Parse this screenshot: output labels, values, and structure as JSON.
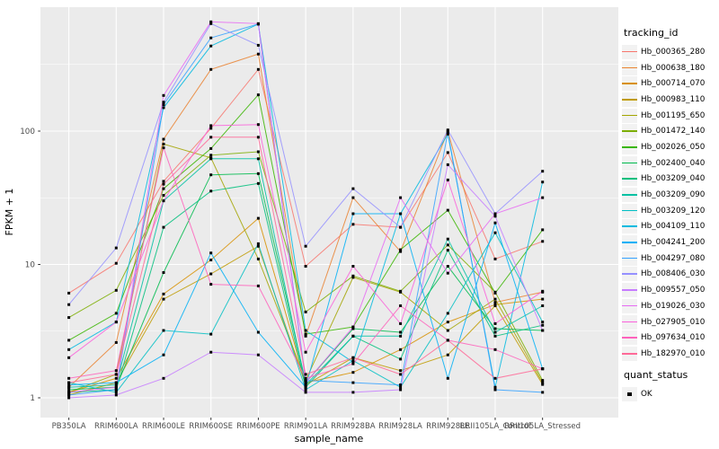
{
  "chart_data": {
    "type": "line",
    "title": "",
    "xlabel": "sample_name",
    "ylabel": "FPKM + 1",
    "y_scale": "log10",
    "y_ticks": [
      1,
      10,
      100
    ],
    "y_minor_gridlines": [
      3.162,
      31.62,
      316.2
    ],
    "ylim": [
      0.72,
      850
    ],
    "grid": "on",
    "panel_bg": "#EBEBEB",
    "grid_color": "#FFFFFF",
    "axis_text_color": "#4D4D4D",
    "point_color": "#000000",
    "point_shape": "square",
    "legend_position": "right",
    "categories": [
      "PB350LA",
      "RRIM600LA",
      "RRIM600LE",
      "RRIM600SE",
      "RRIM600PE",
      "RRIM901LA",
      "RRIM928BA",
      "RRIM928LA",
      "RRIM928LE",
      "RRII105LA_Control",
      "RRII105LA_Stressed"
    ],
    "series": [
      {
        "name": "Hb_000365_280",
        "color": "#F8766D",
        "values": [
          6.1,
          10.2,
          42,
          105,
          290,
          9.7,
          20,
          19,
          69,
          11,
          14.9
        ]
      },
      {
        "name": "Hb_000638_180",
        "color": "#EA8331",
        "values": [
          1.2,
          2.6,
          87,
          290,
          378,
          2.9,
          31.7,
          12.5,
          100,
          5.2,
          6.2
        ]
      },
      {
        "name": "Hb_000714_070",
        "color": "#D89000",
        "values": [
          1.1,
          1.4,
          6.0,
          10.8,
          22.2,
          1.3,
          1.55,
          2.3,
          3.7,
          5.0,
          5.5
        ]
      },
      {
        "name": "Hb_000983_110",
        "color": "#C09B00",
        "values": [
          1.05,
          1.3,
          5.5,
          8.5,
          13.7,
          1.25,
          2.0,
          1.6,
          2.1,
          4.9,
          1.26
        ]
      },
      {
        "name": "Hb_001195_650",
        "color": "#A3A500",
        "values": [
          1.1,
          1.5,
          80,
          63,
          11,
          1.35,
          8.0,
          6.2,
          3.2,
          5.5,
          1.3
        ]
      },
      {
        "name": "Hb_001472_140",
        "color": "#7CAE00",
        "values": [
          4.0,
          6.4,
          33,
          66,
          70,
          4.4,
          8.2,
          6.3,
          14,
          6.2,
          1.35
        ]
      },
      {
        "name": "Hb_002026_050",
        "color": "#39B600",
        "values": [
          2.7,
          4.3,
          37,
          74,
          187,
          3.0,
          3.4,
          12.9,
          25.5,
          6.1,
          18.2
        ]
      },
      {
        "name": "Hb_002400_040",
        "color": "#00BB4E",
        "values": [
          1.15,
          1.2,
          8.7,
          47,
          48,
          1.3,
          3.3,
          3.1,
          9.7,
          3.3,
          3.2
        ]
      },
      {
        "name": "Hb_003209_040",
        "color": "#00BF7D",
        "values": [
          1.1,
          1.15,
          19,
          35.5,
          40.5,
          1.2,
          2.9,
          1.95,
          12.8,
          2.9,
          3.5
        ]
      },
      {
        "name": "Hb_003209_090",
        "color": "#00C1A3",
        "values": [
          1.2,
          1.25,
          30,
          62,
          62,
          1.25,
          2.9,
          2.9,
          15.5,
          3.1,
          4.9
        ]
      },
      {
        "name": "Hb_003209_120",
        "color": "#00BFC4",
        "values": [
          1.3,
          1.1,
          3.2,
          3.0,
          14.3,
          1.15,
          1.9,
          1.2,
          4.3,
          17.3,
          3.7
        ]
      },
      {
        "name": "Hb_004109_110",
        "color": "#00BAE0",
        "values": [
          2.3,
          3.7,
          150,
          435,
          635,
          3.2,
          1.85,
          24,
          95,
          1.2,
          41.5
        ]
      },
      {
        "name": "Hb_004241_200",
        "color": "#00B0F6",
        "values": [
          1.25,
          1.3,
          2.1,
          12.2,
          3.1,
          1.2,
          24,
          24,
          1.4,
          20.5,
          1.65
        ]
      },
      {
        "name": "Hb_004297_080",
        "color": "#35A2FF",
        "values": [
          1.05,
          1.15,
          158,
          500,
          635,
          1.35,
          1.3,
          1.25,
          98,
          1.15,
          1.1
        ]
      },
      {
        "name": "Hb_008406_030",
        "color": "#9590FF",
        "values": [
          5.0,
          13.3,
          165,
          640,
          440,
          13.7,
          37,
          19,
          102,
          24,
          50
        ]
      },
      {
        "name": "Hb_009557_050",
        "color": "#C77CFF",
        "values": [
          1.0,
          1.05,
          1.4,
          2.2,
          2.1,
          1.1,
          1.1,
          1.15,
          56,
          23,
          3.2
        ]
      },
      {
        "name": "Hb_019026_030",
        "color": "#E76BF3",
        "values": [
          1.1,
          1.2,
          185,
          660,
          640,
          1.3,
          3.4,
          31.7,
          8.6,
          24,
          31.7
        ]
      },
      {
        "name": "Hb_027905_010",
        "color": "#FA62DB",
        "values": [
          2.0,
          3.7,
          30,
          110,
          112,
          2.2,
          9.7,
          3.6,
          43,
          3.6,
          6.3
        ]
      },
      {
        "name": "Hb_097634_010",
        "color": "#FF62BC",
        "values": [
          1.4,
          1.6,
          75,
          7.1,
          6.9,
          1.4,
          1.8,
          4.9,
          2.7,
          2.3,
          1.65
        ]
      },
      {
        "name": "Hb_182970_010",
        "color": "#FF6A98",
        "values": [
          1.3,
          1.5,
          40,
          90,
          90,
          1.5,
          2.0,
          1.5,
          2.7,
          1.4,
          1.65
        ]
      }
    ],
    "legends": [
      {
        "title": "tracking_id",
        "type": "line-keys"
      },
      {
        "title": "quant_status",
        "items": [
          {
            "label": "OK",
            "marker": "black-square"
          }
        ]
      }
    ]
  }
}
